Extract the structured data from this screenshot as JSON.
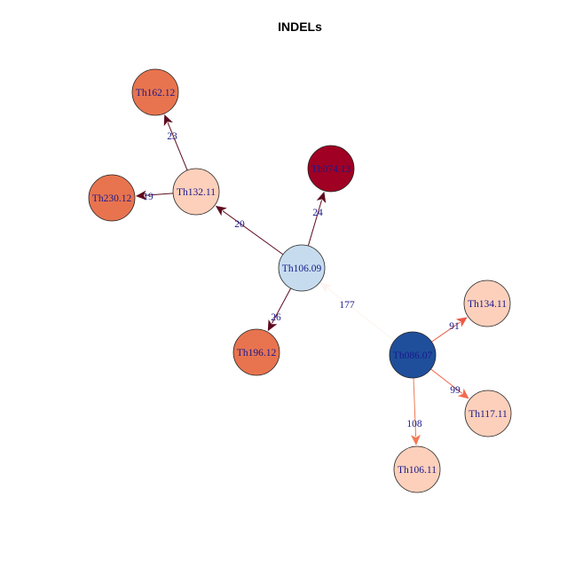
{
  "title": "INDELs",
  "nodes": [
    {
      "id": "Th162.12",
      "label": "Th162.12",
      "color": "#e8744f"
    },
    {
      "id": "Th132.11",
      "label": "Th132.11",
      "color": "#fdd0bb"
    },
    {
      "id": "Th230.12",
      "label": "Th230.12",
      "color": "#e8744f"
    },
    {
      "id": "Th074.13",
      "label": "Th074.13",
      "color": "#a00023"
    },
    {
      "id": "Th106.09",
      "label": "Th106.09",
      "color": "#c6dcee"
    },
    {
      "id": "Th196.12",
      "label": "Th196.12",
      "color": "#e8744f"
    },
    {
      "id": "Th086.07",
      "label": "Th086.07",
      "color": "#1f4f9b"
    },
    {
      "id": "Th134.11",
      "label": "Th134.11",
      "color": "#fdd0bb"
    },
    {
      "id": "Th117.11",
      "label": "Th117.11",
      "color": "#fdd0bb"
    },
    {
      "id": "Th106.11",
      "label": "Th106.11",
      "color": "#fdd0bb"
    }
  ],
  "edges": [
    {
      "from": "Th132.11",
      "to": "Th162.12",
      "label": "23",
      "color": "#5e0a1e"
    },
    {
      "from": "Th132.11",
      "to": "Th230.12",
      "label": "19",
      "color": "#5e0a1e"
    },
    {
      "from": "Th106.09",
      "to": "Th132.11",
      "label": "20",
      "color": "#5e0a1e"
    },
    {
      "from": "Th106.09",
      "to": "Th074.13",
      "label": "24",
      "color": "#5e0a1e"
    },
    {
      "from": "Th106.09",
      "to": "Th196.12",
      "label": "26",
      "color": "#5e0a1e"
    },
    {
      "from": "Th086.07",
      "to": "Th106.09",
      "label": "177",
      "color": "#fdf3ee"
    },
    {
      "from": "Th086.07",
      "to": "Th134.11",
      "label": "91",
      "color": "#ec5a45"
    },
    {
      "from": "Th086.07",
      "to": "Th117.11",
      "label": "99",
      "color": "#f26b4f"
    },
    {
      "from": "Th086.07",
      "to": "Th106.11",
      "label": "108",
      "color": "#f07a55"
    }
  ]
}
